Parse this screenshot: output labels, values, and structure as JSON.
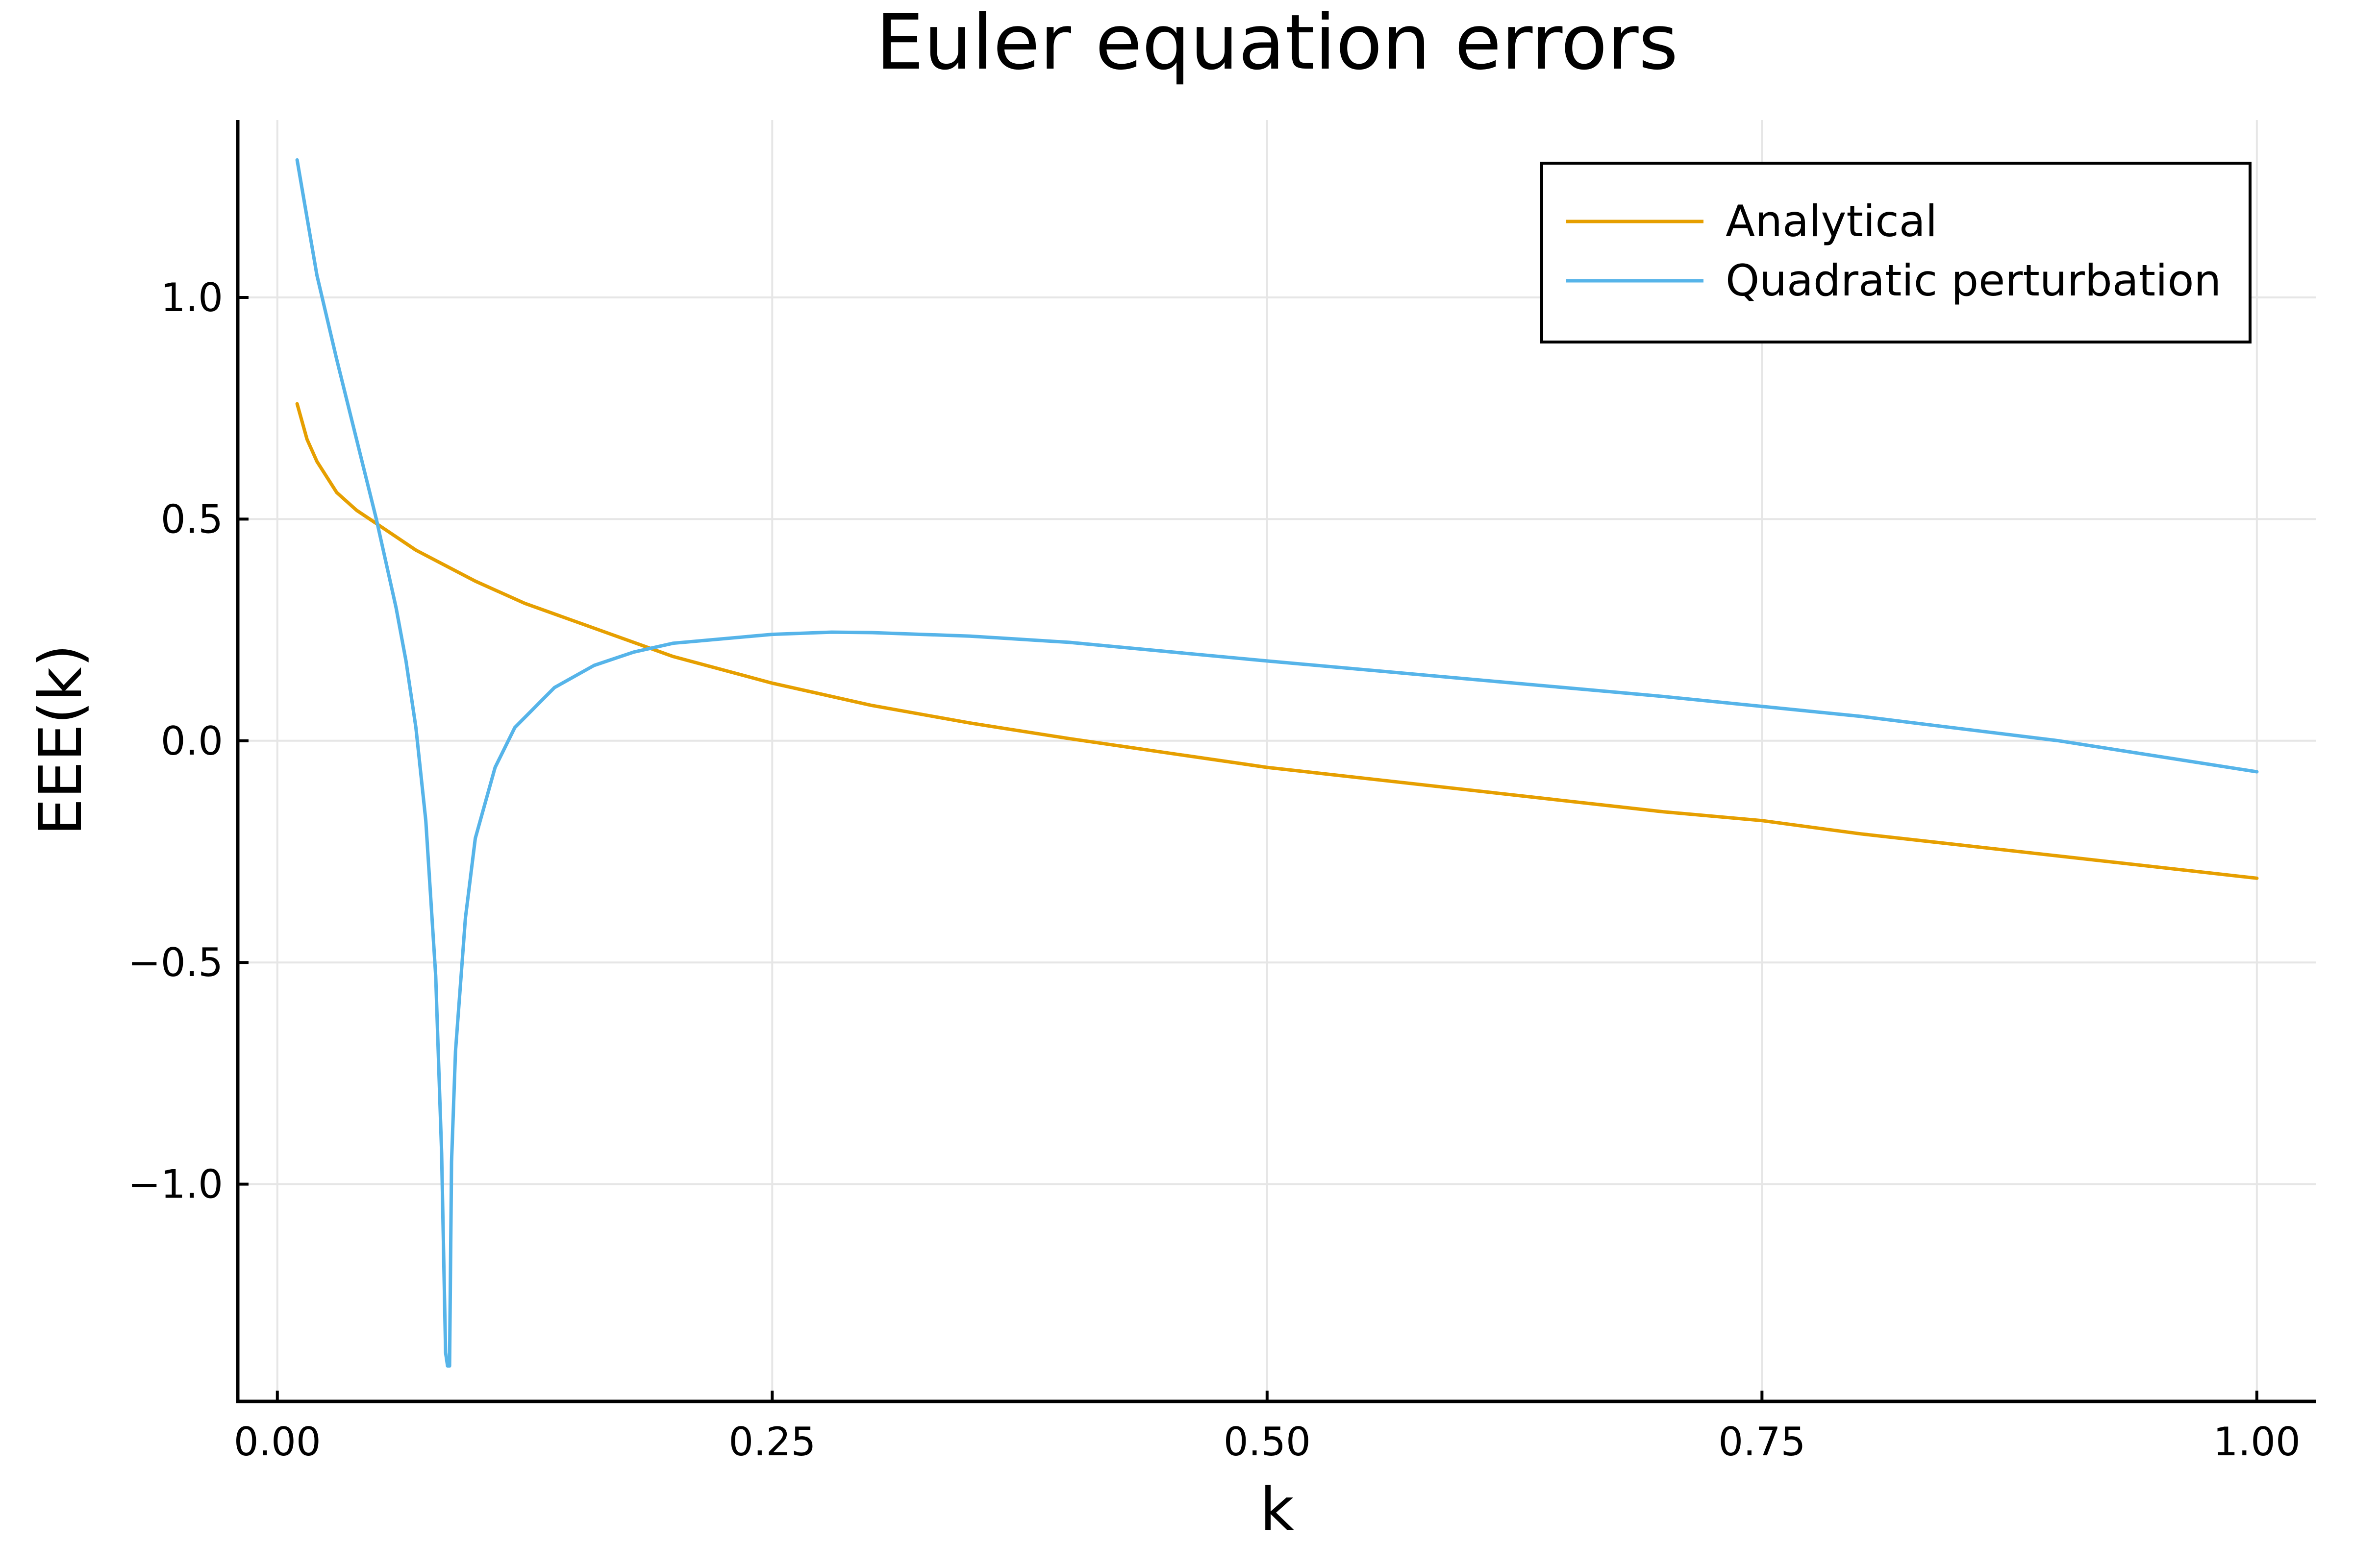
{
  "chart_data": {
    "type": "line",
    "title": "Euler equation errors",
    "xlabel": "k",
    "ylabel": "EEE(k)",
    "xlim": [
      -0.02,
      1.03
    ],
    "ylim": [
      -1.49,
      1.4
    ],
    "xticks": [
      0.0,
      0.25,
      0.5,
      0.75,
      1.0
    ],
    "xtick_labels": [
      "0.00",
      "0.25",
      "0.50",
      "0.75",
      "1.00"
    ],
    "yticks": [
      -1.0,
      -0.5,
      0.0,
      0.5,
      1.0
    ],
    "ytick_labels": [
      "−1.0",
      "−0.5",
      "0.0",
      "0.5",
      "1.0"
    ],
    "grid": true,
    "legend_position": "top-right",
    "series": [
      {
        "name": "Analytical",
        "color": "#e69f00",
        "x": [
          0.01,
          0.015,
          0.02,
          0.03,
          0.04,
          0.05,
          0.07,
          0.1,
          0.125,
          0.15,
          0.2,
          0.25,
          0.3,
          0.35,
          0.4,
          0.5,
          0.6,
          0.7,
          0.75,
          0.8,
          0.9,
          1.0
        ],
        "y": [
          0.76,
          0.68,
          0.63,
          0.56,
          0.52,
          0.49,
          0.43,
          0.36,
          0.31,
          0.27,
          0.19,
          0.13,
          0.08,
          0.04,
          0.005,
          -0.06,
          -0.11,
          -0.16,
          -0.18,
          -0.21,
          -0.26,
          -0.31
        ]
      },
      {
        "name": "Quadratic perturbation",
        "color": "#56b4e9",
        "x": [
          0.01,
          0.015,
          0.02,
          0.03,
          0.04,
          0.05,
          0.06,
          0.065,
          0.07,
          0.075,
          0.08,
          0.083,
          0.085,
          0.086,
          0.087,
          0.088,
          0.09,
          0.095,
          0.1,
          0.11,
          0.12,
          0.14,
          0.16,
          0.18,
          0.2,
          0.25,
          0.28,
          0.3,
          0.35,
          0.4,
          0.5,
          0.6,
          0.7,
          0.8,
          0.9,
          1.0
        ],
        "y": [
          1.31,
          1.18,
          1.05,
          0.86,
          0.68,
          0.5,
          0.3,
          0.18,
          0.03,
          -0.18,
          -0.53,
          -0.93,
          -1.38,
          -1.41,
          -1.41,
          -0.95,
          -0.7,
          -0.4,
          -0.22,
          -0.06,
          0.03,
          0.12,
          0.17,
          0.2,
          0.22,
          0.24,
          0.245,
          0.244,
          0.236,
          0.222,
          0.18,
          0.14,
          0.1,
          0.055,
          0.0,
          -0.07
        ]
      }
    ]
  }
}
